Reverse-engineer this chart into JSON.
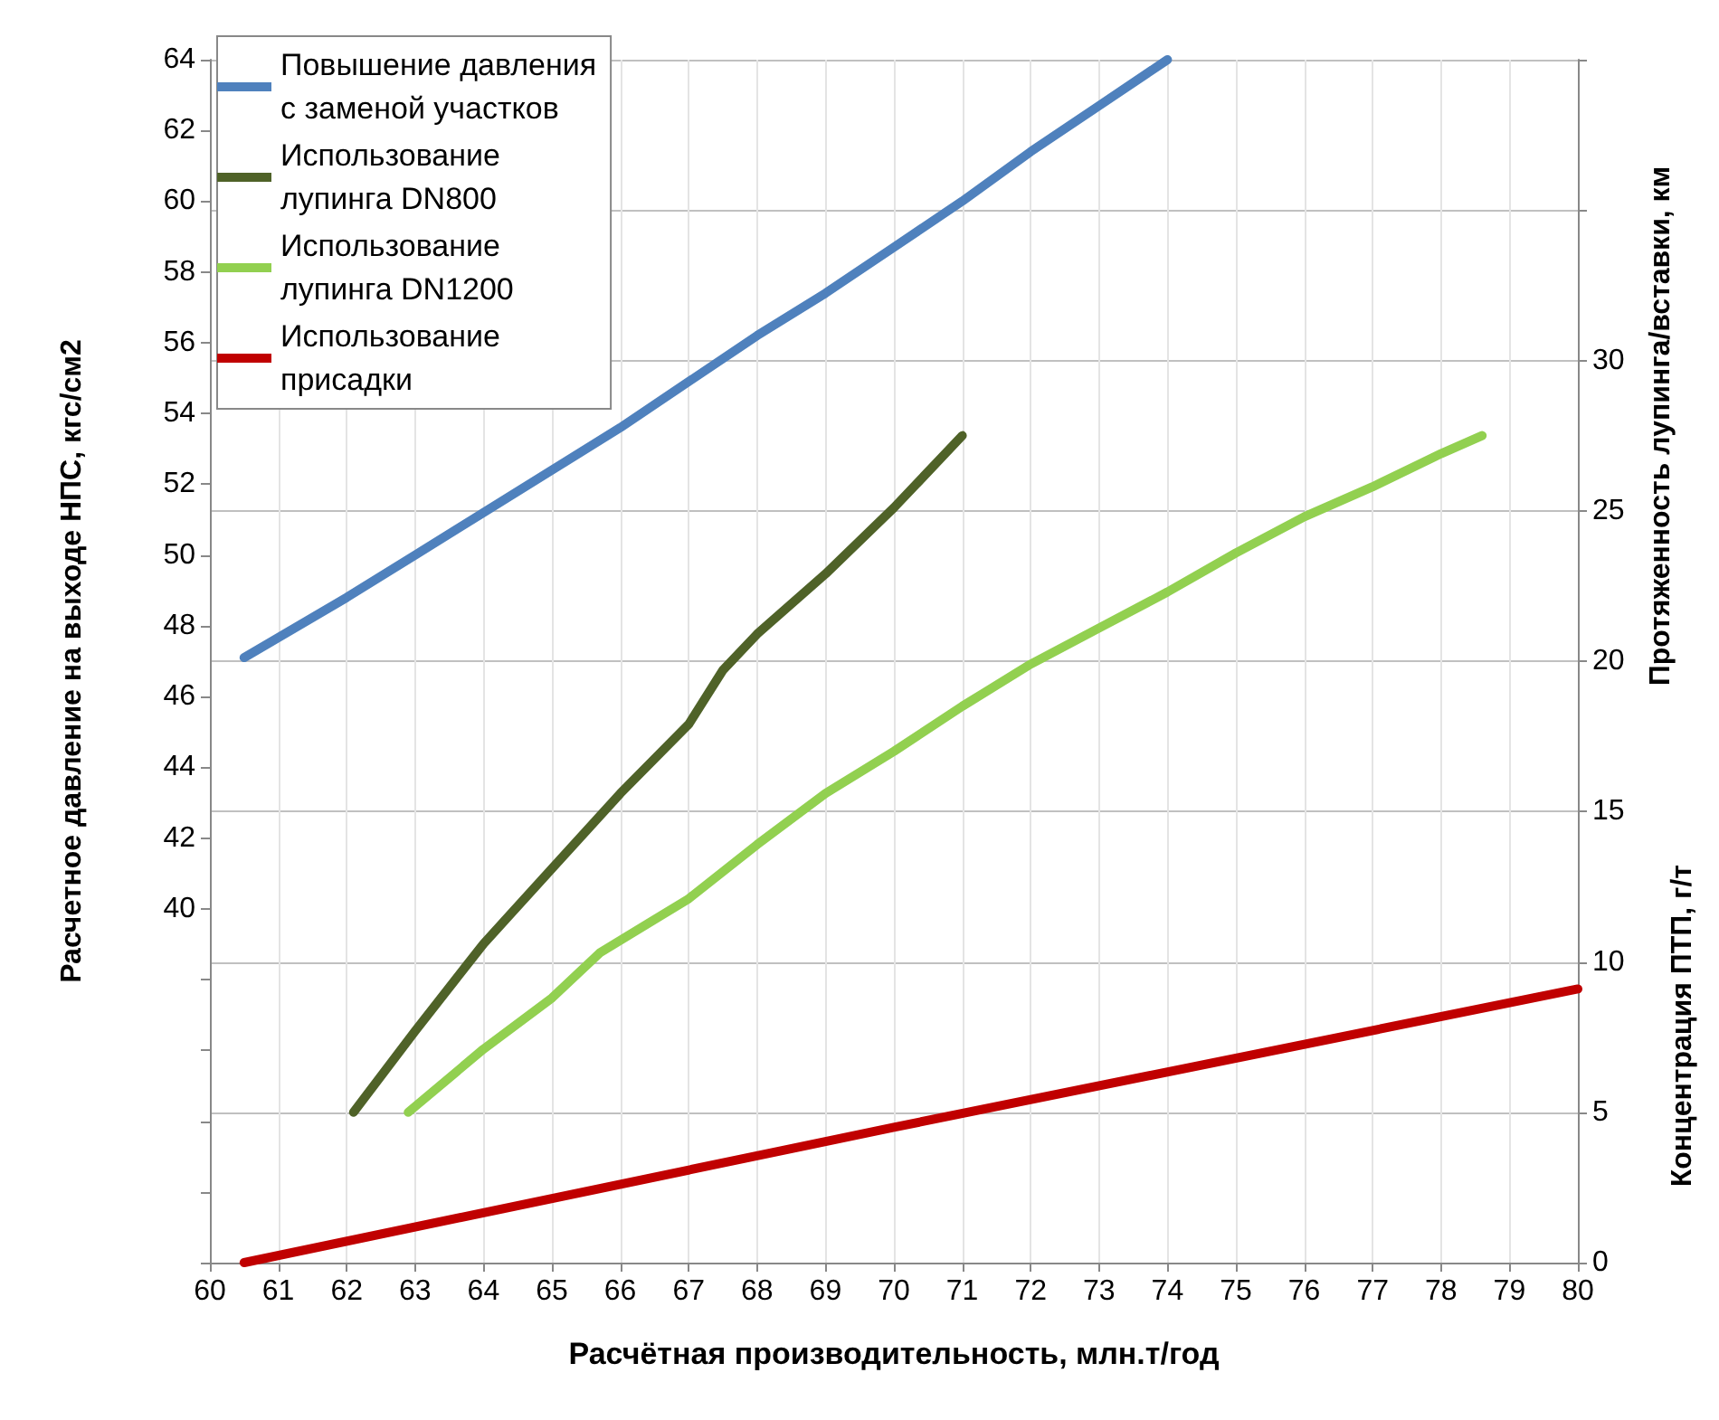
{
  "chart_data": {
    "type": "line",
    "xlabel": "Расчётная производительность, млн.т/год",
    "ylabel": "Расчетное давление на выходе НПС, кгс/см2",
    "y2label": "Протяженность лупинга/вставки, км",
    "annotations": [
      "Концентрация ПТП, г/т"
    ],
    "xlim": [
      60,
      80
    ],
    "xticks": [
      60,
      61,
      62,
      63,
      64,
      65,
      66,
      67,
      68,
      69,
      70,
      71,
      72,
      73,
      74,
      75,
      76,
      77,
      78,
      79,
      80
    ],
    "ylim": [
      30,
      64
    ],
    "yticks": [
      {
        "value": 30,
        "label": null
      },
      {
        "value": 32,
        "label": null
      },
      {
        "value": 34,
        "label": null
      },
      {
        "value": 36,
        "label": null
      },
      {
        "value": 38,
        "label": null
      },
      40,
      42,
      44,
      46,
      48,
      50,
      52,
      54,
      56,
      58,
      60,
      62,
      64
    ],
    "y2lim": [
      0,
      40
    ],
    "y2ticks": [
      0,
      5,
      10,
      15,
      20,
      25,
      30,
      {
        "value": 35,
        "label": null
      },
      {
        "value": 40,
        "label": null
      }
    ],
    "grid": true,
    "legend": "top left",
    "marker": "none",
    "line_style": "solid",
    "series": [
      {
        "name": "Повышение давления\nс заменой участков",
        "color": "#4f81bd",
        "x": [
          60.5,
          62,
          63,
          64,
          65,
          66,
          67,
          68,
          69,
          70,
          71,
          72,
          73,
          74
        ],
        "values": [
          47.1,
          48.8,
          50,
          51.2,
          52.4,
          53.6,
          54.9,
          56.2,
          57.4,
          58.7,
          60,
          61.4,
          62.7,
          64
        ]
      },
      {
        "name": "Использование\nлупинга DN800",
        "color": "#4f6228",
        "axis": "y2",
        "x": [
          62.1,
          63,
          64,
          65,
          66,
          67,
          67.5,
          68,
          69,
          70,
          71
        ],
        "values": [
          5,
          7.7,
          10.6,
          13.1,
          15.6,
          17.9,
          19.7,
          20.9,
          22.9,
          25.1,
          27.5
        ]
      },
      {
        "name": "Использование\nлупинга DN1200",
        "color": "#92d050",
        "axis": "y2",
        "x": [
          62.9,
          64,
          65,
          65.7,
          67,
          68,
          69,
          70,
          71,
          72,
          73,
          74,
          75,
          76,
          77,
          78,
          78.6
        ],
        "values": [
          5,
          7.1,
          8.8,
          10.3,
          12.1,
          13.9,
          15.6,
          17,
          18.5,
          19.9,
          21.1,
          22.3,
          23.6,
          24.8,
          25.8,
          26.9,
          27.5
        ]
      },
      {
        "name": "Использование\nприсадки",
        "color": "#c00000",
        "axis": "y2",
        "x": [
          60.5,
          70,
          80
        ],
        "values": [
          0,
          4.5,
          9.1
        ]
      }
    ]
  }
}
